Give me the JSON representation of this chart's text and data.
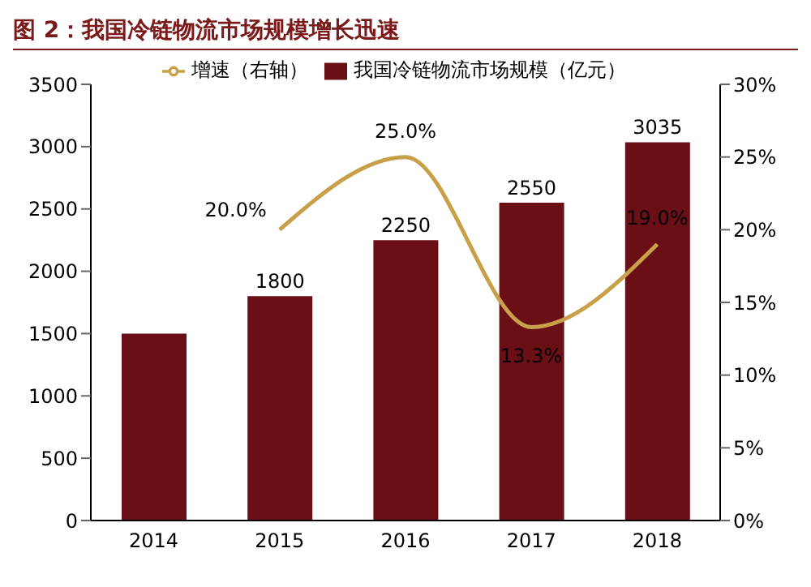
{
  "chart_data": {
    "type": "bar",
    "title": "图 2：我国冷链物流市场规模增长迅速",
    "categories": [
      "2014",
      "2015",
      "2016",
      "2017",
      "2018"
    ],
    "series": [
      {
        "name": "我国冷链物流市场规模（亿元）",
        "color": "#6b0f17",
        "values": [
          1500,
          1800,
          2250,
          2550,
          3035
        ],
        "value_labels": [
          null,
          "1800",
          "2250",
          "2550",
          "3035"
        ]
      },
      {
        "name": "增速（右轴）",
        "type": "line",
        "axis": "y2",
        "color": "#c8a04a",
        "values": [
          null,
          20.0,
          25.0,
          13.3,
          19.0
        ],
        "value_labels": [
          null,
          "20.0%",
          "25.0%",
          "13.3%",
          "19.0%"
        ]
      }
    ],
    "ylim": [
      0,
      3500
    ],
    "yticks": [
      0,
      500,
      1000,
      1500,
      2000,
      2500,
      3000,
      3500
    ],
    "y2lim": [
      0,
      30
    ],
    "y2ticks": [
      {
        "value": 0,
        "label": "0%"
      },
      {
        "value": 5,
        "label": "5%"
      },
      {
        "value": 10,
        "label": "10%"
      },
      {
        "value": 15,
        "label": "15%"
      },
      {
        "value": 20,
        "label": "20%"
      },
      {
        "value": 25,
        "label": "25%"
      },
      {
        "value": 30,
        "label": "30%"
      }
    ],
    "legend": "top",
    "marker": "none",
    "grid": false
  }
}
